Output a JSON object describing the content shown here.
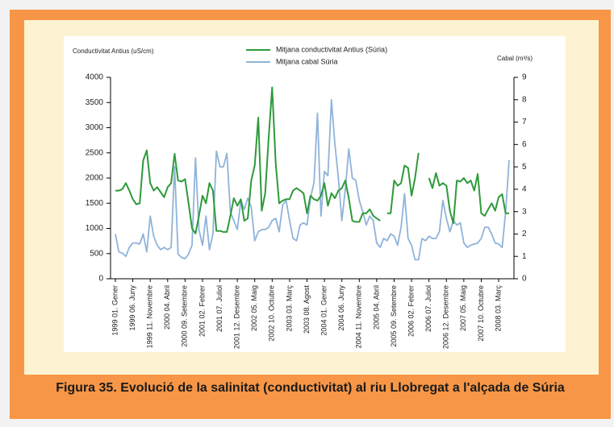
{
  "chart_data": {
    "type": "line",
    "y_label": "Conductivitat Antius (uS/cm)",
    "y2_label": "Cabal (m³/s)",
    "categories": [
      "1999 01. Gener",
      null,
      null,
      null,
      null,
      "1999 06. Juny",
      null,
      null,
      null,
      null,
      "1999 11. Novembre",
      null,
      null,
      null,
      null,
      "2000 04. Abril",
      null,
      null,
      null,
      null,
      "2000 09. Setembre",
      null,
      null,
      null,
      null,
      "2001 02. Febrer",
      null,
      null,
      null,
      null,
      "2001 07. Juliol",
      null,
      null,
      null,
      null,
      "2001 12. Desembre",
      null,
      null,
      null,
      null,
      "2002 05. Maig",
      null,
      null,
      null,
      null,
      "2002 10. Octubre",
      null,
      null,
      null,
      null,
      "2003 03. Març",
      null,
      null,
      null,
      null,
      "2003 08. Agost",
      null,
      null,
      null,
      null,
      "2004 01. Gener",
      null,
      null,
      null,
      null,
      "2004 06. Juny",
      null,
      null,
      null,
      null,
      "2004 11. Novembre",
      null,
      null,
      null,
      null,
      "2005 04. Abril",
      null,
      null,
      null,
      null,
      "2005 09. Setembre",
      null,
      null,
      null,
      null,
      "2006 02. Febrer",
      null,
      null,
      null,
      null,
      "2006 07. Juliol",
      null,
      null,
      null,
      null,
      "2006 12. Desembre",
      null,
      null,
      null,
      null,
      "2007 05. Maig",
      null,
      null,
      null,
      null,
      "2007 10. Octubre",
      null,
      null,
      null,
      null,
      "2008 03. Març",
      null,
      null,
      null
    ],
    "series": [
      {
        "name": "Mitjana conductivitat Antius (Súria)",
        "color": "#2e9a3a",
        "values": [
          1750,
          1750,
          1780,
          1900,
          1750,
          1580,
          1480,
          1500,
          2350,
          2550,
          1900,
          1750,
          1820,
          1720,
          1620,
          1820,
          1900,
          2480,
          1950,
          1930,
          1980,
          1500,
          1000,
          900,
          1250,
          1650,
          1500,
          1900,
          1750,
          950,
          950,
          930,
          930,
          1250,
          1600,
          1450,
          1580,
          1150,
          1200,
          1950,
          2250,
          3200,
          1350,
          1700,
          2800,
          3800,
          2300,
          1500,
          1550,
          1580,
          1580,
          1750,
          1800,
          1750,
          1700,
          1300,
          1650,
          1580,
          1550,
          1650,
          1900,
          1450,
          1700,
          1600,
          1750,
          1800,
          1950,
          1600,
          1150,
          1130,
          1130,
          1300,
          1300,
          1380,
          1250,
          1200,
          1150,
          null,
          1300,
          1300,
          1950,
          1850,
          1900,
          2250,
          2200,
          1650,
          2000,
          2500,
          null,
          null,
          2000,
          1800,
          2100,
          1850,
          1900,
          1850,
          1350,
          1100,
          1950,
          1930,
          2000,
          1900,
          1950,
          1750,
          2080,
          1300,
          1250,
          1380,
          1500,
          1350,
          1620,
          1680,
          1300,
          1300
        ]
      },
      {
        "name": "Mitjana cabal Súria",
        "color": "#8fb3d9",
        "axis": "y2",
        "values": [
          2.0,
          1.2,
          1.15,
          1.0,
          1.4,
          1.6,
          1.6,
          1.55,
          2.0,
          1.2,
          2.8,
          1.9,
          1.5,
          1.3,
          1.4,
          1.3,
          1.4,
          5.0,
          1.1,
          0.95,
          0.9,
          1.1,
          1.5,
          5.4,
          2.2,
          1.5,
          2.8,
          1.3,
          2.0,
          5.7,
          5.0,
          5.0,
          5.6,
          3.0,
          2.6,
          2.2,
          3.5,
          3.1,
          3.6,
          3.2,
          1.7,
          2.1,
          2.2,
          2.2,
          2.3,
          2.6,
          2.7,
          2.1,
          3.3,
          3.5,
          2.6,
          1.8,
          1.7,
          2.4,
          2.5,
          2.4,
          3.6,
          4.3,
          7.4,
          2.8,
          4.8,
          4.6,
          8.0,
          6.0,
          4.5,
          2.6,
          4.0,
          5.8,
          4.5,
          4.4,
          3.5,
          3.0,
          2.4,
          2.8,
          2.6,
          1.6,
          1.4,
          1.8,
          1.7,
          2.0,
          1.9,
          1.5,
          2.3,
          3.8,
          1.8,
          1.5,
          0.85,
          0.85,
          1.8,
          1.7,
          1.9,
          1.8,
          1.8,
          2.1,
          3.5,
          2.7,
          2.1,
          2.6,
          2.4,
          2.5,
          1.6,
          1.4,
          1.5,
          1.55,
          1.6,
          1.8,
          2.3,
          2.3,
          2.0,
          1.6,
          1.55,
          1.4,
          3.0,
          5.3
        ]
      }
    ],
    "ylim": [
      0,
      4000
    ],
    "yticks": [
      0,
      500,
      1000,
      1500,
      2000,
      2500,
      3000,
      3500,
      4000
    ],
    "y2lim": [
      0,
      9
    ],
    "y2ticks": [
      0,
      1,
      2,
      3,
      4,
      5,
      6,
      7,
      8,
      9
    ],
    "legend": "top"
  },
  "figure_caption": "Figura 35. Evolució de la salinitat (conductivitat) al riu Llobregat a l'alçada de Súria"
}
